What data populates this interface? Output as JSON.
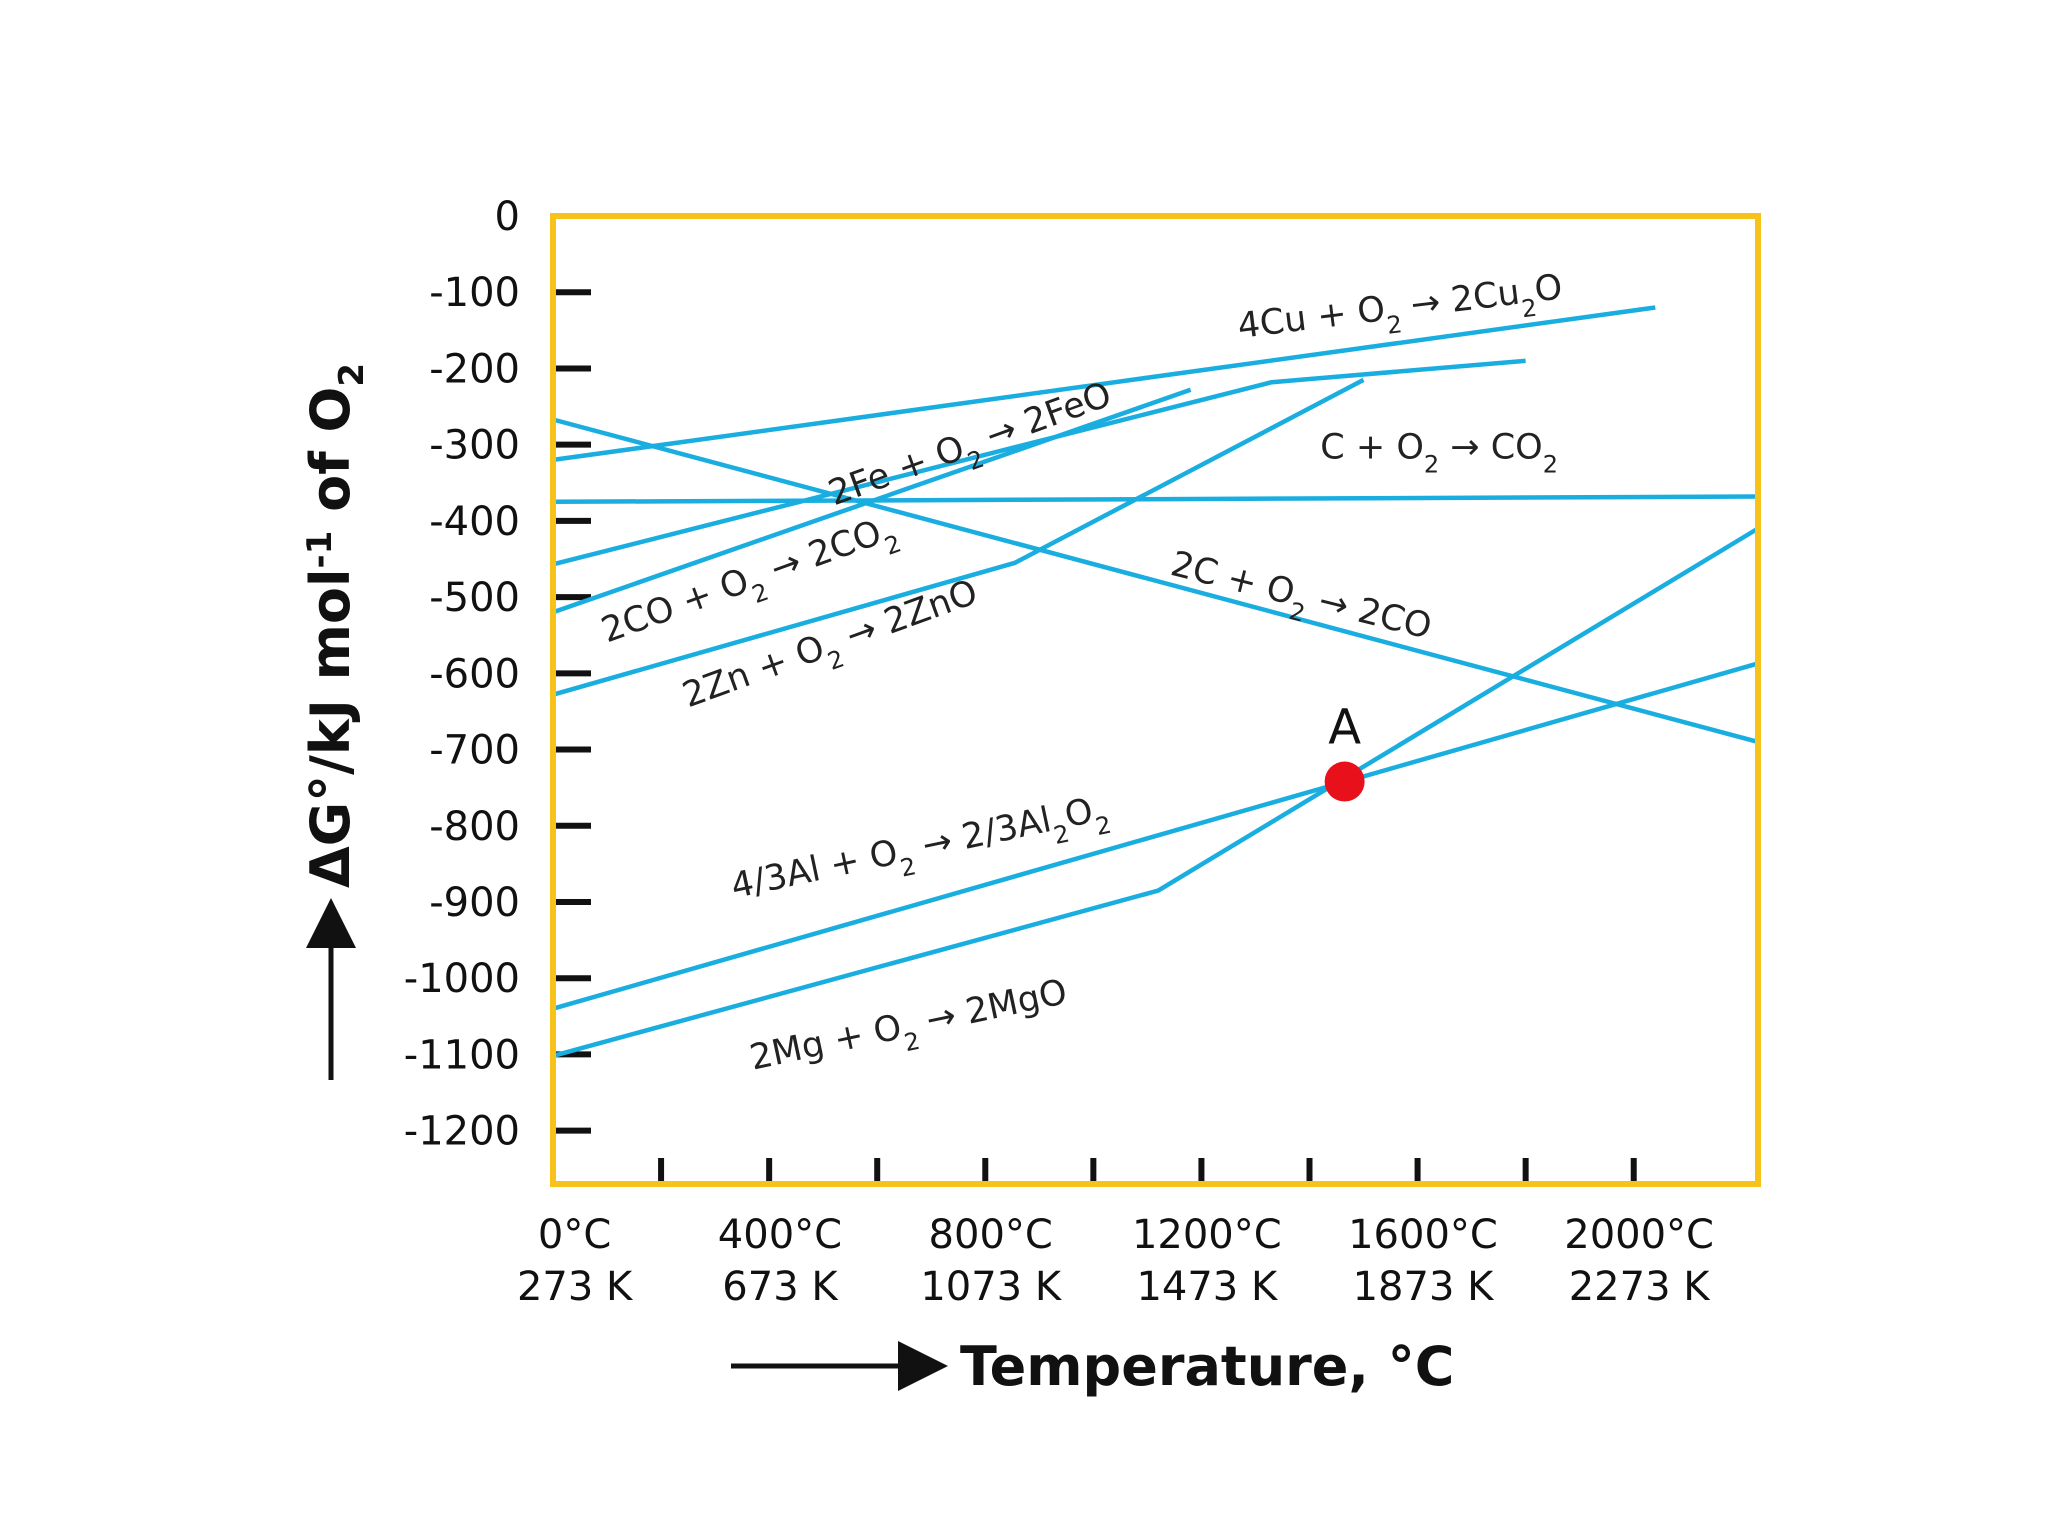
{
  "chart_data": {
    "type": "line",
    "title": "",
    "xlabel": "Temperature, °C",
    "ylabel": "ΔG°/kJ mol⁻¹ of O₂",
    "xlim": [
      0,
      2230
    ],
    "ylim": [
      -1270,
      0
    ],
    "yticks": [
      0,
      -100,
      -200,
      -300,
      -400,
      -500,
      -600,
      -700,
      -800,
      -900,
      -1000,
      -1100,
      -1200
    ],
    "yticks_major": [
      -100,
      -200,
      -300,
      -400,
      -500,
      -600,
      -700,
      -800,
      -900,
      -1000,
      -1100,
      -1200
    ],
    "ytick_labels": [
      "0",
      "-100",
      "-200",
      "-300",
      "-400",
      "-500",
      "-600",
      "-700",
      "-800",
      "-900",
      "-1000",
      "-1100",
      "-1200"
    ],
    "xticks_minor": [
      200,
      400,
      600,
      800,
      1000,
      1200,
      1400,
      1600,
      1800,
      2000
    ],
    "xtick_labels": [
      {
        "x": 40,
        "celsius": "0°C",
        "kelvin": "273 K"
      },
      {
        "x": 420,
        "celsius": "400°C",
        "kelvin": "673 K"
      },
      {
        "x": 810,
        "celsius": "800°C",
        "kelvin": "1073 K"
      },
      {
        "x": 1210,
        "celsius": "1200°C",
        "kelvin": "1473 K"
      },
      {
        "x": 1610,
        "celsius": "1600°C",
        "kelvin": "1873 K"
      },
      {
        "x": 2010,
        "celsius": "2000°C",
        "kelvin": "2273 K"
      }
    ],
    "line_color": "#1aaee0",
    "frame_color": "#f7c21a",
    "series": [
      {
        "label_parts": [
          [
            "4Cu + O",
            ""
          ],
          [
            "2",
            "sub"
          ],
          [
            " → 2Cu",
            ""
          ],
          [
            "2",
            "sub"
          ],
          [
            "O",
            ""
          ]
        ],
        "points": [
          [
            0,
            -320
          ],
          [
            2040,
            -120
          ]
        ],
        "label_anchor": [
          1270,
          -160
        ],
        "label_angle": -7
      },
      {
        "label_parts": [
          [
            "2Fe + O",
            ""
          ],
          [
            "2",
            "sub"
          ],
          [
            " → 2FeO",
            ""
          ]
        ],
        "points": [
          [
            0,
            -457
          ],
          [
            1330,
            -218
          ],
          [
            1800,
            -190
          ]
        ],
        "label_anchor": [
          520,
          -380
        ],
        "label_angle": -20
      },
      {
        "label_parts": [
          [
            "2CO + O",
            ""
          ],
          [
            "2",
            "sub"
          ],
          [
            " → 2CO",
            ""
          ],
          [
            "2",
            "sub"
          ]
        ],
        "points": [
          [
            0,
            -520
          ],
          [
            1180,
            -228
          ]
        ],
        "label_anchor": [
          100,
          -560
        ],
        "label_angle": -20
      },
      {
        "label_parts": [
          [
            "C + O",
            ""
          ],
          [
            "2",
            "sub"
          ],
          [
            " → CO",
            ""
          ],
          [
            "2",
            "sub"
          ]
        ],
        "points": [
          [
            0,
            -375
          ],
          [
            2230,
            -368
          ]
        ],
        "label_anchor": [
          1420,
          -318
        ],
        "label_angle": 0
      },
      {
        "label_parts": [
          [
            "2C + O",
            ""
          ],
          [
            "2",
            "sub"
          ],
          [
            " → 2CO",
            ""
          ]
        ],
        "points": [
          [
            0,
            -267
          ],
          [
            2230,
            -690
          ]
        ],
        "label_anchor": [
          1140,
          -470
        ],
        "label_angle": 14
      },
      {
        "label_parts": [
          [
            "2Zn + O",
            ""
          ],
          [
            "2",
            "sub"
          ],
          [
            " → 2ZnO",
            ""
          ]
        ],
        "points": [
          [
            0,
            -628
          ],
          [
            855,
            -455
          ],
          [
            1500,
            -215
          ]
        ],
        "label_anchor": [
          250,
          -645
        ],
        "label_angle": -20
      },
      {
        "label_parts": [
          [
            "4/3Al + O",
            ""
          ],
          [
            "2",
            "sub"
          ],
          [
            " → 2/3Al",
            ""
          ],
          [
            "2",
            "sub"
          ],
          [
            "O",
            ""
          ],
          [
            "2",
            "sub"
          ]
        ],
        "points": [
          [
            0,
            -1040
          ],
          [
            2230,
            -587
          ]
        ],
        "label_anchor": [
          335,
          -895
        ],
        "label_angle": -12
      },
      {
        "label_parts": [
          [
            "2Mg + O",
            ""
          ],
          [
            "2",
            "sub"
          ],
          [
            " → 2MgO",
            ""
          ]
        ],
        "points": [
          [
            0,
            -1102
          ],
          [
            1120,
            -885
          ],
          [
            2230,
            -410
          ]
        ],
        "label_anchor": [
          370,
          -1120
        ],
        "label_angle": -12
      }
    ],
    "point": {
      "label": "A",
      "x": 1465,
      "y": -742,
      "color": "#e8101a"
    }
  }
}
